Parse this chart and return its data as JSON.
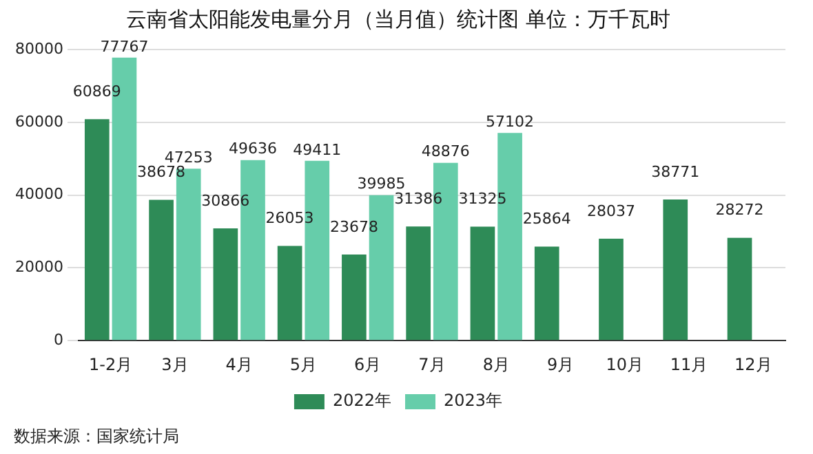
{
  "chart_data": {
    "type": "bar",
    "title": "云南省太阳能发电量分月（当月值）统计图 单位：万千瓦时",
    "categories": [
      "1-2月",
      "3月",
      "4月",
      "5月",
      "6月",
      "7月",
      "8月",
      "9月",
      "10月",
      "11月",
      "12月"
    ],
    "series": [
      {
        "name": "2022年",
        "color": "#2e8b57",
        "values": [
          60869,
          38678,
          30866,
          26053,
          23678,
          31386,
          31325,
          25864,
          28037,
          38771,
          28272
        ]
      },
      {
        "name": "2023年",
        "color": "#66cdaa",
        "values": [
          77767,
          47253,
          49636,
          49411,
          39985,
          48876,
          57102,
          null,
          null,
          null,
          null
        ]
      }
    ],
    "ylim": [
      0,
      80000
    ],
    "yticks": [
      0,
      20000,
      40000,
      60000,
      80000
    ],
    "grid": "y",
    "legend": "bottom",
    "data_labels": true,
    "annotations": [
      "数据来源：国家统计局"
    ]
  }
}
